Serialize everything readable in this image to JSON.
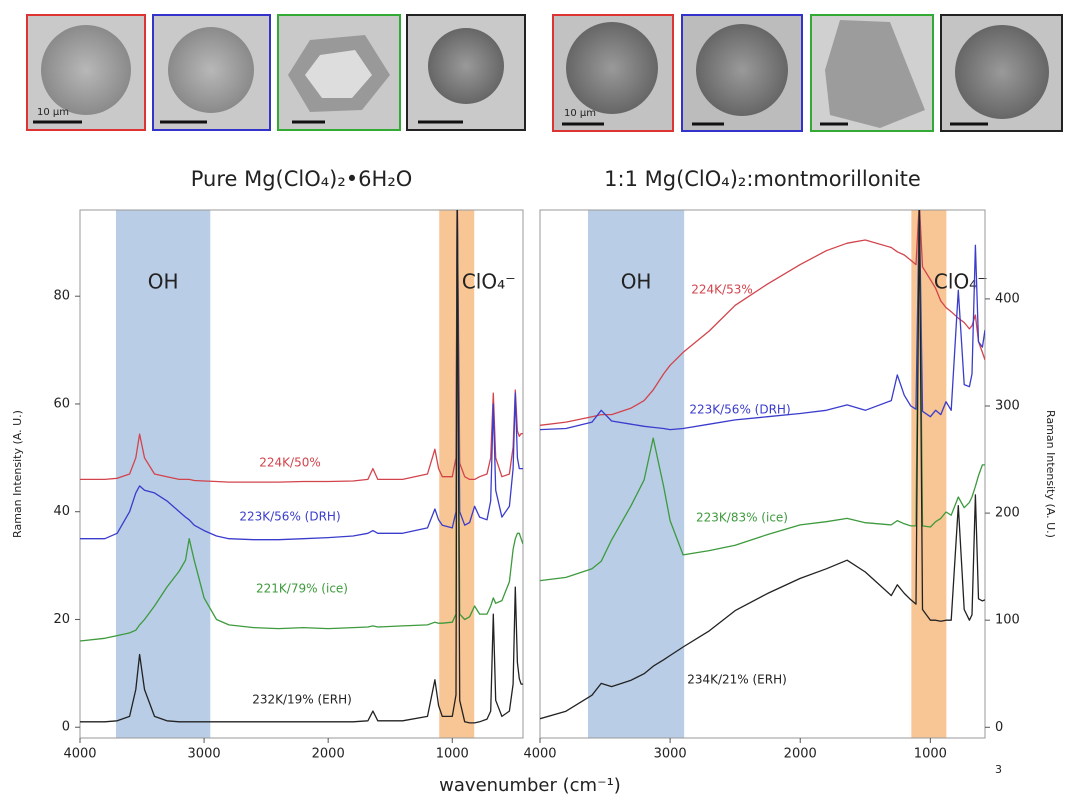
{
  "micrographs": {
    "scale_labels": [
      "10 μm",
      "10 μm"
    ]
  },
  "xlabel": "wavenumber (cm⁻¹)",
  "slide_number": "3",
  "chart_data": [
    {
      "type": "line",
      "title": "Pure Mg(ClO₄)₂•6H₂O",
      "ylabel": "Raman Intensity (A. U.)",
      "xlim": [
        4000,
        430
      ],
      "xticks": [
        4000,
        3000,
        2000,
        1000
      ],
      "ylim": [
        -2,
        96
      ],
      "yticks": [
        0,
        20,
        40,
        60,
        80
      ],
      "bands": [
        {
          "label": "OH",
          "range": [
            3710,
            2950
          ],
          "color": "#b9cde6"
        },
        {
          "label": "ClO₄⁻",
          "range": [
            1105,
            823
          ],
          "color": "#f8c594"
        }
      ],
      "x": [
        4000,
        3800,
        3700,
        3600,
        3550,
        3520,
        3480,
        3400,
        3300,
        3200,
        3150,
        3120,
        3080,
        3000,
        2900,
        2800,
        2600,
        2400,
        2200,
        2000,
        1800,
        1680,
        1640,
        1600,
        1400,
        1200,
        1140,
        1110,
        1080,
        1000,
        970,
        960,
        940,
        900,
        860,
        820,
        780,
        720,
        690,
        669,
        650,
        600,
        540,
        510,
        492,
        475,
        460,
        445,
        430
      ],
      "series": [
        {
          "name": "224K/50%",
          "color": "#d2444c",
          "values": [
            46,
            46,
            46.2,
            47,
            50,
            54.4,
            50,
            47,
            46.5,
            46,
            46,
            46,
            45.8,
            45.7,
            45.6,
            45.5,
            45.5,
            45.5,
            45.6,
            45.6,
            45.7,
            46,
            48,
            46,
            46,
            47,
            51.6,
            48,
            46.5,
            46.5,
            50,
            100,
            49,
            46.5,
            46,
            46,
            46.5,
            47,
            50,
            62,
            50,
            46.5,
            47,
            52,
            62.6,
            55,
            54,
            54.5,
            54.5
          ]
        },
        {
          "name": "223K/56% (DRH)",
          "color": "#3a3ccc",
          "values": [
            35,
            35,
            36,
            40,
            43.5,
            44.8,
            44,
            43.5,
            42,
            40,
            39,
            38.5,
            37.5,
            36.5,
            35.5,
            35,
            34.8,
            34.8,
            35,
            35.2,
            35.5,
            36,
            36.5,
            36,
            36,
            37,
            40.5,
            38.5,
            37.5,
            37,
            40,
            100,
            40,
            37.5,
            38,
            41,
            39,
            38.5,
            42,
            60,
            44,
            39,
            41,
            48,
            62,
            50,
            48,
            48,
            48
          ]
        },
        {
          "name": "221K/79% (ice)",
          "color": "#3d9a3d",
          "values": [
            16,
            16.5,
            17,
            17.5,
            18,
            19,
            20,
            22.5,
            26,
            29,
            31,
            35,
            31,
            24,
            20,
            19,
            18.5,
            18.3,
            18.5,
            18.3,
            18.5,
            18.6,
            18.8,
            18.6,
            18.8,
            19,
            19.5,
            19.3,
            19.3,
            19.5,
            21,
            100,
            21,
            20,
            20.5,
            22.5,
            21,
            21,
            22.5,
            24,
            23,
            23.5,
            27,
            33,
            35,
            36,
            36,
            35,
            34
          ]
        },
        {
          "name": "232K/19% (ERH)",
          "color": "#222222",
          "values": [
            1,
            1,
            1.2,
            2,
            7,
            13.5,
            7,
            2,
            1.2,
            1,
            1,
            1,
            1,
            1,
            1,
            1,
            1,
            1,
            1,
            1,
            1,
            1.2,
            3,
            1.2,
            1.2,
            2,
            8.8,
            4,
            2,
            2,
            6,
            100,
            5,
            1,
            0.8,
            0.8,
            1,
            1.5,
            3,
            21,
            5,
            2,
            3,
            8,
            26,
            12,
            9,
            8,
            8
          ]
        }
      ]
    },
    {
      "type": "line",
      "title": "1:1 Mg(ClO₄)₂:montmorillonite",
      "y2label": "Raman Intensity (A. U.)",
      "xlim": [
        4000,
        580
      ],
      "xticks": [
        4000,
        3000,
        2000,
        1000
      ],
      "y2lim": [
        -10,
        483
      ],
      "y2ticks": [
        0,
        100,
        200,
        300,
        400
      ],
      "bands": [
        {
          "label": "OH",
          "range": [
            3631,
            2892
          ],
          "color": "#b9cde6"
        },
        {
          "label": "ClO₄⁻",
          "range": [
            1146,
            877
          ],
          "color": "#f8c594"
        }
      ],
      "x": [
        4000,
        3800,
        3600,
        3530,
        3450,
        3300,
        3200,
        3130,
        3050,
        3000,
        2900,
        2700,
        2500,
        2250,
        2000,
        1800,
        1640,
        1500,
        1300,
        1254,
        1200,
        1150,
        1110,
        1085,
        1060,
        1000,
        960,
        920,
        880,
        840,
        785,
        740,
        700,
        680,
        654,
        630,
        600,
        580
      ],
      "series": [
        {
          "name": "224K/53%",
          "color": "#d2444c",
          "axis": "y2",
          "values": [
            282,
            285,
            290,
            292,
            292,
            298,
            305,
            315,
            330,
            338,
            350,
            370,
            394,
            414,
            432,
            445,
            452,
            455,
            448,
            444,
            441,
            436,
            432,
            490,
            430,
            418,
            410,
            398,
            392,
            388,
            382,
            378,
            372,
            375,
            385,
            360,
            350,
            343
          ]
        },
        {
          "name": "223K/56% (DRH)",
          "color": "#3a3ccc",
          "axis": "y2",
          "values": [
            278,
            279,
            285,
            296,
            286,
            283,
            281,
            280,
            279,
            278,
            279,
            283,
            287,
            290,
            293,
            296,
            301,
            296,
            305,
            329,
            310,
            300,
            297,
            490,
            295,
            290,
            296,
            292,
            304,
            296,
            408,
            320,
            318,
            330,
            450,
            360,
            355,
            371
          ]
        },
        {
          "name": "223K/83% (ice)",
          "color": "#3d9a3d",
          "axis": "y2",
          "values": [
            137,
            140,
            148,
            155,
            175,
            207,
            231,
            270,
            225,
            193,
            161,
            165,
            170,
            180,
            189,
            192,
            195,
            191,
            189,
            193,
            190,
            188,
            188,
            490,
            188,
            187,
            192,
            195,
            201,
            198,
            215,
            205,
            210,
            215,
            225,
            235,
            245,
            245
          ]
        },
        {
          "name": "234K/21% (ERH)",
          "color": "#222222",
          "axis": "y2",
          "values": [
            8,
            15,
            30,
            41,
            38,
            44,
            50,
            57,
            63,
            67,
            75,
            90,
            109,
            125,
            139,
            148,
            156,
            145,
            123,
            133,
            125,
            119,
            115,
            490,
            110,
            100,
            100,
            99,
            100,
            100,
            207,
            110,
            100,
            105,
            217,
            120,
            118,
            119
          ]
        }
      ]
    }
  ]
}
